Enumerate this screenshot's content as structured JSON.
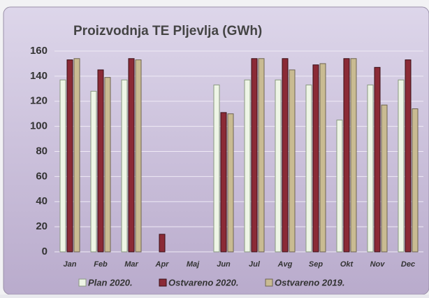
{
  "chart_data": {
    "type": "bar",
    "title": "Proizvodnja TE Pljevlja (GWh)",
    "categories": [
      "Jan",
      "Feb",
      "Mar",
      "Apr",
      "Maj",
      "Jun",
      "Jul",
      "Avg",
      "Sep",
      "Okt",
      "Nov",
      "Dec"
    ],
    "series": [
      {
        "name": "Plan 2020.",
        "color": "#eef5e6",
        "values": [
          137,
          128,
          137,
          0,
          0,
          133,
          137,
          137,
          133,
          105,
          133,
          137
        ]
      },
      {
        "name": "Ostvareno 2020.",
        "color": "#8b2a36",
        "values": [
          153,
          145,
          154,
          14,
          0,
          111,
          154,
          154,
          149,
          154,
          147,
          153
        ]
      },
      {
        "name": "Ostvareno 2019.",
        "color": "#c9bb92",
        "values": [
          154,
          139,
          153,
          0,
          0,
          110,
          154,
          145,
          150,
          154,
          117,
          114
        ]
      }
    ],
    "ylim": [
      0,
      160
    ],
    "yticks": [
      0,
      20,
      40,
      60,
      80,
      100,
      120,
      140,
      160
    ],
    "grid": true
  }
}
